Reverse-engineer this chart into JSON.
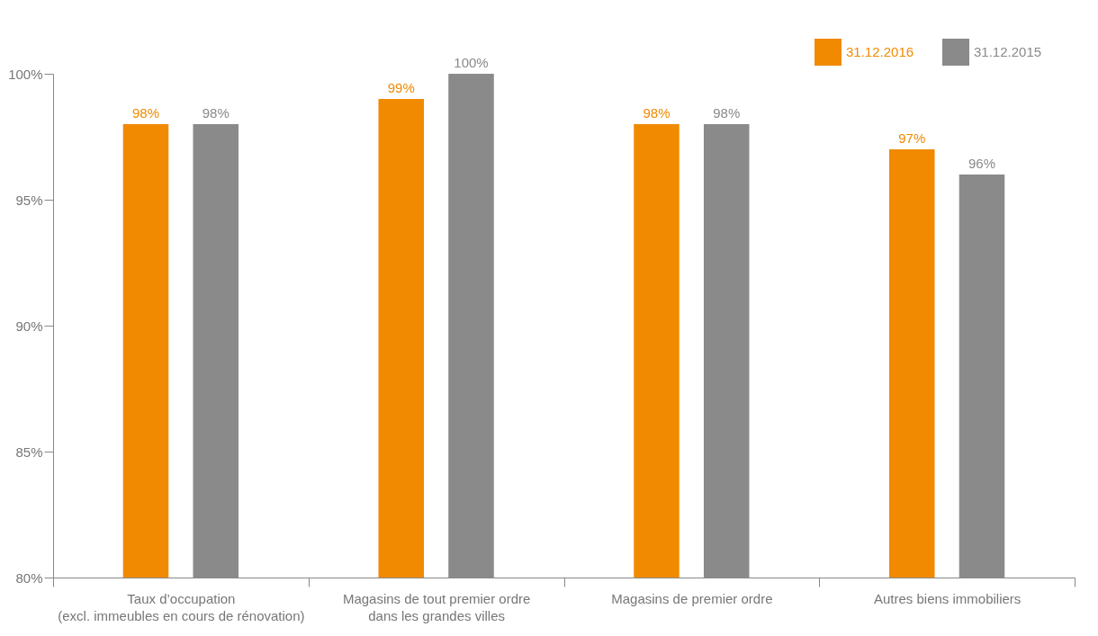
{
  "chart_data": {
    "type": "bar",
    "categories": [
      "Taux d’occupation\n(excl. immeubles en cours de rénovation)",
      "Magasins de tout premier ordre\ndans les grandes villes",
      "Magasins de premier ordre",
      "Autres biens immobiliers"
    ],
    "series": [
      {
        "name": "31.12.2016",
        "color": "#f18a00",
        "values": [
          98,
          99,
          98,
          97
        ],
        "value_labels": [
          "98%",
          "99%",
          "98%",
          "97%"
        ]
      },
      {
        "name": "31.12.2015",
        "color": "#8a8a8a",
        "values": [
          98,
          100,
          98,
          96
        ],
        "value_labels": [
          "98%",
          "100%",
          "98%",
          "96%"
        ]
      }
    ],
    "ylim": [
      80,
      100
    ],
    "yticks": [
      {
        "value": 80,
        "label": "80%"
      },
      {
        "value": 85,
        "label": "85%"
      },
      {
        "value": 90,
        "label": "90%"
      },
      {
        "value": 95,
        "label": "95%"
      },
      {
        "value": 100,
        "label": "100%"
      }
    ],
    "legend": "top right"
  }
}
